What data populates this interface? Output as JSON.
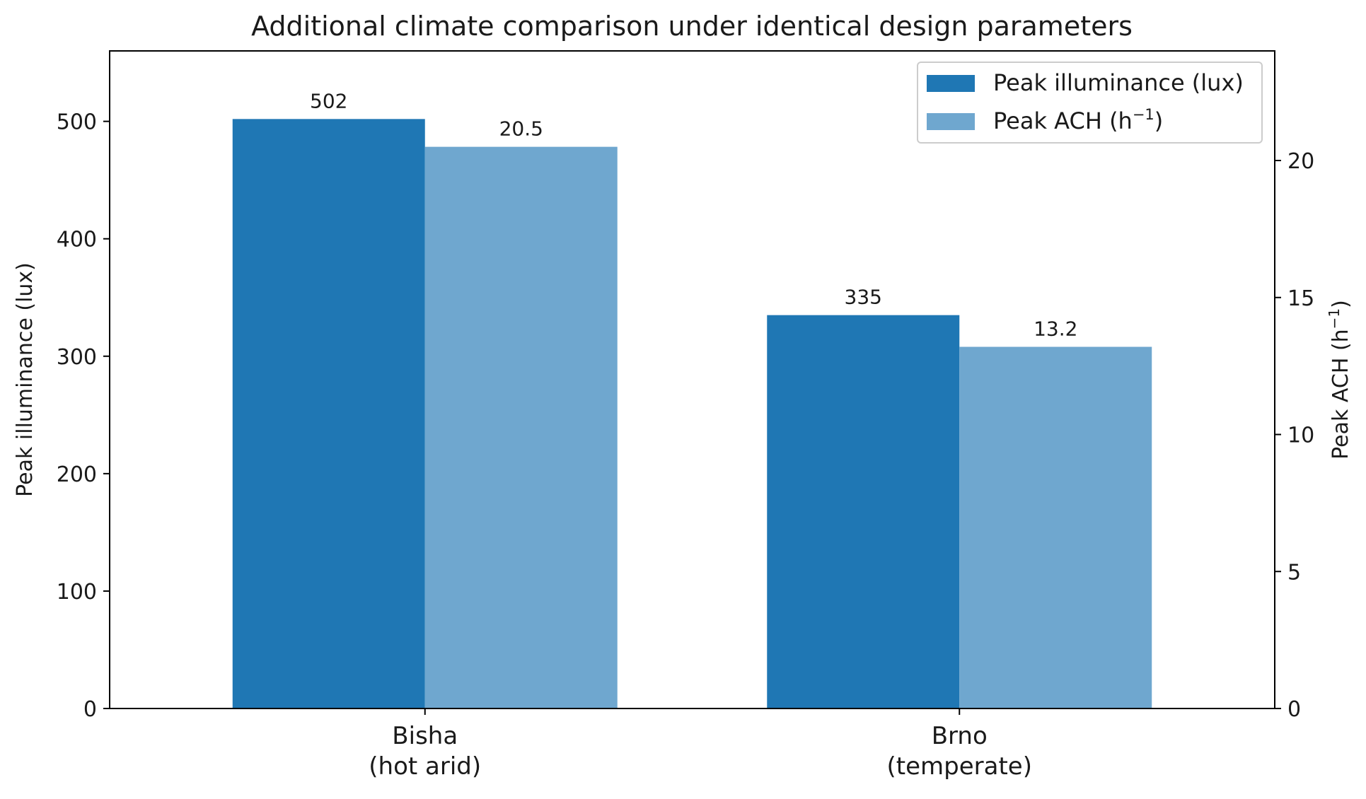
{
  "chart_data": {
    "type": "bar",
    "title": "Additional climate comparison under identical design parameters",
    "categories": [
      {
        "line1": "Bisha",
        "line2": "(hot arid)"
      },
      {
        "line1": "Brno",
        "line2": "(temperate)"
      }
    ],
    "series": [
      {
        "name": "Peak illuminance (lux)",
        "axis": "left",
        "color": "#1f77b4",
        "values": [
          502,
          335
        ],
        "value_labels": [
          "502",
          "335"
        ]
      },
      {
        "name_base": "Peak ACH (h",
        "name_sup": "−1",
        "name_end": ")",
        "axis": "right",
        "color": "#6fa7cf",
        "values": [
          20.5,
          13.2
        ],
        "value_labels": [
          "20.5",
          "13.2"
        ]
      }
    ],
    "y_left": {
      "label": "Peak illuminance (lux)",
      "ylim": [
        0,
        560
      ],
      "ticks": [
        0,
        100,
        200,
        300,
        400,
        500
      ]
    },
    "y_right": {
      "label_base": "Peak ACH (h",
      "label_sup": "−1",
      "label_end": ")",
      "ylim": [
        0,
        24
      ],
      "ticks": [
        0,
        5,
        10,
        15,
        20
      ]
    },
    "grid": false,
    "legend_position": "top-right"
  }
}
